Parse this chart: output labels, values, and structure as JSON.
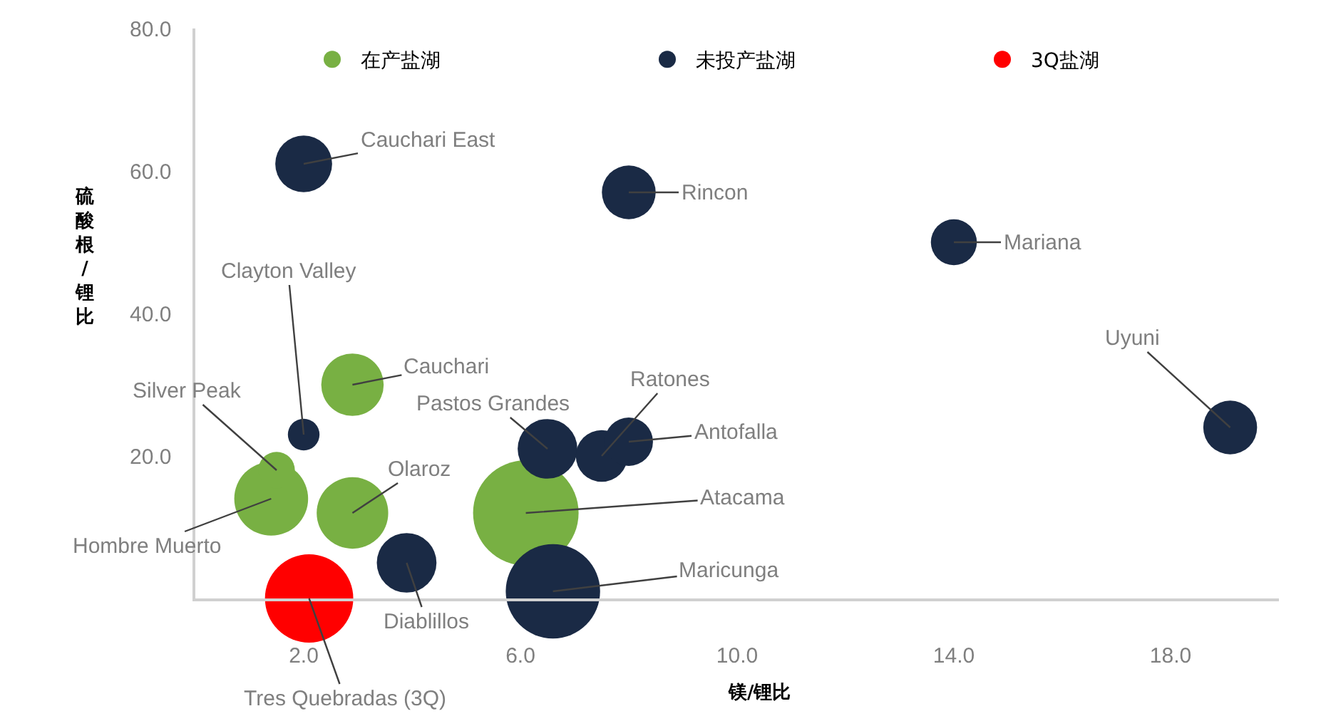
{
  "chart_data": {
    "type": "bubble",
    "xlabel": "镁/锂比",
    "ylabel": "硫酸根/锂比",
    "series": [
      {
        "name": "在产盐湖",
        "color": "#78b043",
        "x": [
          2.9,
          1.4,
          1.5,
          2.9,
          6.1
        ],
        "values": [
          30,
          14,
          18,
          12,
          12
        ],
        "sizes": [
          0.35,
          0.49,
          0.12,
          0.46,
          1
        ]
      },
      {
        "name": "未投产盐湖",
        "color": "#1a2a45",
        "x": [
          2.0,
          8.0,
          14.0,
          19.1,
          2.0,
          6.5,
          7.5,
          8.0,
          3.9,
          6.6
        ],
        "values": [
          61,
          57,
          50,
          24,
          23,
          21,
          20,
          22,
          5,
          1
        ],
        "sizes": [
          0.29,
          0.26,
          0.19,
          0.26,
          0.09,
          0.32,
          0.24,
          0.21,
          0.32,
          0.8
        ]
      },
      {
        "name": "3Q盐湖",
        "color": "#ff0000",
        "x": [
          2.1
        ],
        "values": [
          0
        ],
        "sizes": [
          0.7
        ]
      }
    ],
    "annotations": [
      {
        "text": "Cauchari East",
        "x": 2.0,
        "y": 61
      },
      {
        "text": "Rincon",
        "x": 8.0,
        "y": 57
      },
      {
        "text": "Mariana",
        "x": 14.0,
        "y": 50
      },
      {
        "text": "Uyuni",
        "x": 19.1,
        "y": 24
      },
      {
        "text": "Clayton Valley",
        "x": 2.0,
        "y": 23
      },
      {
        "text": "Cauchari",
        "x": 2.9,
        "y": 30
      },
      {
        "text": "Silver Peak",
        "x": 1.5,
        "y": 18
      },
      {
        "text": "Hombre Muerto",
        "x": 1.4,
        "y": 14
      },
      {
        "text": "Olaroz",
        "x": 2.9,
        "y": 12
      },
      {
        "text": "Pastos Grandes",
        "x": 6.5,
        "y": 21
      },
      {
        "text": "Ratones",
        "x": 7.5,
        "y": 20
      },
      {
        "text": "Antofalla",
        "x": 8.0,
        "y": 22
      },
      {
        "text": "Atacama",
        "x": 6.1,
        "y": 12
      },
      {
        "text": "Diablillos",
        "x": 3.9,
        "y": 5
      },
      {
        "text": "Maricunga",
        "x": 6.6,
        "y": 1
      },
      {
        "text": "Tres Quebradas (3Q)",
        "x": 2.1,
        "y": 0
      }
    ],
    "xlim": [
      0,
      20
    ],
    "ylim": [
      0,
      80
    ],
    "xticks": [
      {
        "value": 2,
        "label": "2.0"
      },
      {
        "value": 6,
        "label": "6.0"
      },
      {
        "value": 10,
        "label": "10.0"
      },
      {
        "value": 14,
        "label": "14.0"
      },
      {
        "value": 18,
        "label": "18.0"
      }
    ],
    "yticks": [
      {
        "value": 20,
        "label": "20.0"
      },
      {
        "value": 40,
        "label": "40.0"
      },
      {
        "value": 60,
        "label": "60.0"
      },
      {
        "value": 80,
        "label": "80.0"
      }
    ],
    "legend": "top"
  }
}
